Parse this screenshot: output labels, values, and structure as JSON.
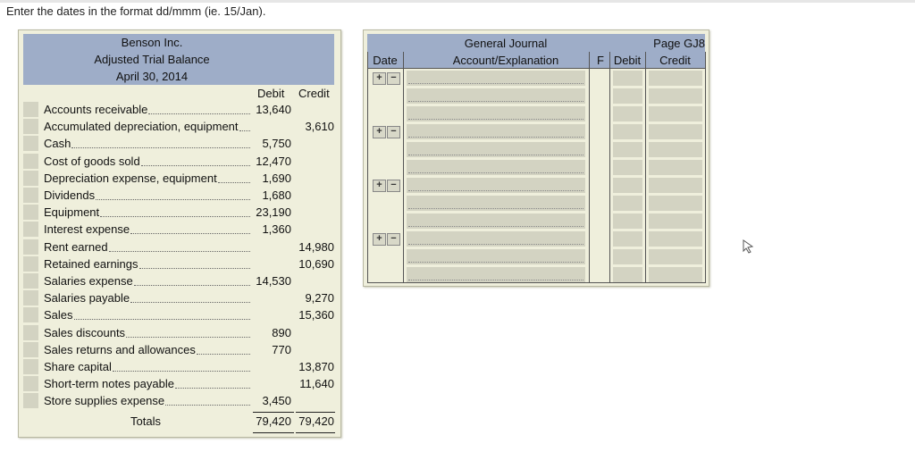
{
  "instruction": "Enter the dates in the format dd/mmm (ie. 15/Jan).",
  "trial_balance": {
    "company": "Benson Inc.",
    "title": "Adjusted Trial Balance",
    "date": "April 30, 2014",
    "debit_header": "Debit",
    "credit_header": "Credit",
    "rows": [
      {
        "label": "Accounts receivable",
        "debit": "13,640",
        "credit": ""
      },
      {
        "label": "Accumulated depreciation, equipment",
        "debit": "",
        "credit": "3,610"
      },
      {
        "label": "Cash",
        "debit": "5,750",
        "credit": ""
      },
      {
        "label": "Cost of goods sold",
        "debit": "12,470",
        "credit": ""
      },
      {
        "label": "Depreciation expense, equipment",
        "debit": "1,690",
        "credit": ""
      },
      {
        "label": "Dividends",
        "debit": "1,680",
        "credit": ""
      },
      {
        "label": "Equipment",
        "debit": "23,190",
        "credit": ""
      },
      {
        "label": "Interest expense",
        "debit": "1,360",
        "credit": ""
      },
      {
        "label": "Rent earned",
        "debit": "",
        "credit": "14,980"
      },
      {
        "label": "Retained earnings",
        "debit": "",
        "credit": "10,690"
      },
      {
        "label": "Salaries expense",
        "debit": "14,530",
        "credit": ""
      },
      {
        "label": "Salaries payable",
        "debit": "",
        "credit": "9,270"
      },
      {
        "label": "Sales",
        "debit": "",
        "credit": "15,360"
      },
      {
        "label": "Sales discounts",
        "debit": "890",
        "credit": ""
      },
      {
        "label": "Sales returns and allowances",
        "debit": "770",
        "credit": ""
      },
      {
        "label": "Share capital",
        "debit": "",
        "credit": "13,870"
      },
      {
        "label": "Short-term notes payable",
        "debit": "",
        "credit": "11,640"
      },
      {
        "label": "Store supplies expense",
        "debit": "3,450",
        "credit": ""
      }
    ],
    "totals_label": "Totals",
    "total_debit": "79,420",
    "total_credit": "79,420"
  },
  "journal": {
    "title": "General Journal",
    "page": "Page GJ8",
    "col_date": "Date",
    "col_account": "Account/Explanation",
    "col_f": "F",
    "col_debit": "Debit",
    "col_credit": "Credit",
    "add_symbol": "+",
    "remove_symbol": "−"
  }
}
